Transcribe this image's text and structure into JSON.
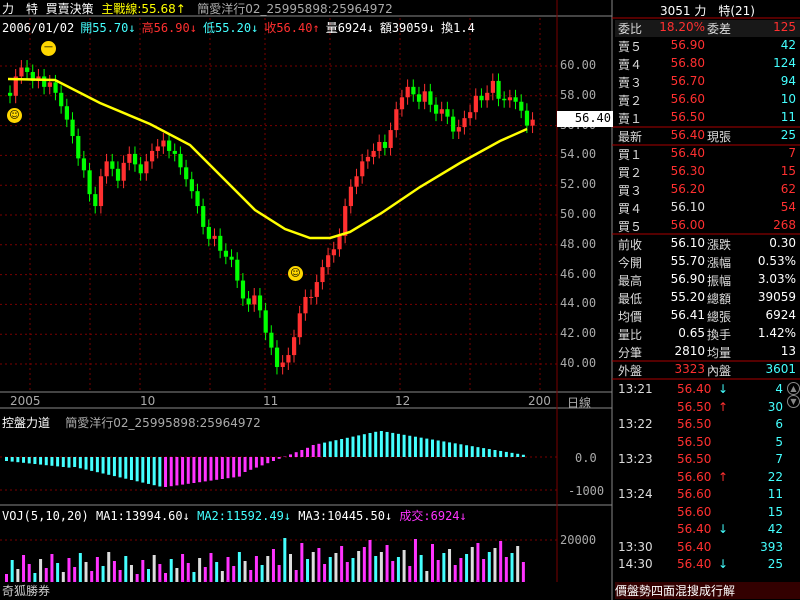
{
  "header": {
    "symbol": "力　特",
    "panel_title": "買賣決策",
    "main_line_label": "主戰線:",
    "main_line_value": "55.68↑",
    "broker_info": "簡愛洋行02_25995898:25964972",
    "date": "2006/01/02",
    "open": "開55.70↓",
    "high": "高56.90↓",
    "low": "低55.20↓",
    "close": "收56.40↑",
    "volume": "量6924↓",
    "amount": "額39059↓",
    "turnover": "換1.4"
  },
  "price_axis": {
    "ticks": [
      "60.00",
      "58.00",
      "56.00",
      "54.00",
      "52.00",
      "50.00",
      "48.00",
      "46.00",
      "44.00",
      "42.00",
      "40.00"
    ],
    "current": "56.40"
  },
  "time_axis": {
    "labels": [
      "2005",
      "10",
      "11",
      "12",
      "200"
    ],
    "unit": "日線"
  },
  "indicator_panel": {
    "title": "控盤力道",
    "broker": "簡愛洋行02_25995898:25964972",
    "ticks": [
      "0.0",
      "-1000"
    ]
  },
  "volume_panel": {
    "title": "VOJ(5,10,20)",
    "ma1": "MA1:13994.60↓",
    "ma2": "MA2:11592.49↓",
    "ma3": "MA3:10445.50↓",
    "deal": "成交:6924↓",
    "tick": "20000",
    "brand": "奇狐勝券"
  },
  "quote": {
    "title": "3051 力　特(21)",
    "weibi_label": "委比",
    "weibi_value": "18.20%",
    "weicha_label": "委差",
    "weicha_value": "125",
    "asks": [
      {
        "label": "賣５",
        "price": "56.90",
        "vol": "42"
      },
      {
        "label": "賣４",
        "price": "56.80",
        "vol": "124"
      },
      {
        "label": "賣３",
        "price": "56.70",
        "vol": "94"
      },
      {
        "label": "賣２",
        "price": "56.60",
        "vol": "10"
      },
      {
        "label": "賣１",
        "price": "56.50",
        "vol": "11"
      }
    ],
    "latest_label": "最新",
    "latest_price": "56.40",
    "now_label": "現張",
    "now_vol": "25",
    "bids": [
      {
        "label": "買１",
        "price": "56.40",
        "vol": "7"
      },
      {
        "label": "買２",
        "price": "56.30",
        "vol": "15"
      },
      {
        "label": "買３",
        "price": "56.20",
        "vol": "62"
      },
      {
        "label": "買４",
        "price": "56.10",
        "vol": "54"
      },
      {
        "label": "買５",
        "price": "56.00",
        "vol": "268"
      }
    ],
    "stats": [
      {
        "l1": "前收",
        "v1": "56.10",
        "l2": "漲跌",
        "v2": "0.30"
      },
      {
        "l1": "今開",
        "v1": "55.70",
        "l2": "漲幅",
        "v2": "0.53%"
      },
      {
        "l1": "最高",
        "v1": "56.90",
        "l2": "振幅",
        "v2": "3.03%"
      },
      {
        "l1": "最低",
        "v1": "55.20",
        "l2": "總額",
        "v2": "39059"
      },
      {
        "l1": "均價",
        "v1": "56.41",
        "l2": "總張",
        "v2": "6924"
      },
      {
        "l1": "量比",
        "v1": "0.65",
        "l2": "換手",
        "v2": "1.42%"
      },
      {
        "l1": "分筆",
        "v1": "2810",
        "l2": "均量",
        "v2": "13"
      }
    ],
    "outer_label": "外盤",
    "outer_value": "3323",
    "inner_label": "內盤",
    "inner_value": "3601"
  },
  "ticks": [
    {
      "time": "13:21",
      "price": "56.40",
      "arrow": "↓",
      "vol": "4"
    },
    {
      "time": "",
      "price": "56.50",
      "arrow": "↑",
      "vol": "30"
    },
    {
      "time": "13:22",
      "price": "56.50",
      "arrow": "",
      "vol": "6"
    },
    {
      "time": "",
      "price": "56.50",
      "arrow": "",
      "vol": "5"
    },
    {
      "time": "13:23",
      "price": "56.50",
      "arrow": "",
      "vol": "7"
    },
    {
      "time": "",
      "price": "56.60",
      "arrow": "↑",
      "vol": "22"
    },
    {
      "time": "13:24",
      "price": "56.60",
      "arrow": "",
      "vol": "11"
    },
    {
      "time": "",
      "price": "56.60",
      "arrow": "",
      "vol": "15"
    },
    {
      "time": "",
      "price": "56.40",
      "arrow": "↓",
      "vol": "42"
    },
    {
      "time": "13:30",
      "price": "56.40",
      "arrow": "",
      "vol": "393"
    },
    {
      "time": "14:30",
      "price": "56.40",
      "arrow": "↓",
      "vol": "25"
    }
  ],
  "status_bar": "價盤勢四面混搜成行解",
  "colors": {
    "up": "#ff3030",
    "down": "#00ff00",
    "ma": "#ffff00",
    "cyan": "#44ffff",
    "magenta": "#ff33ff",
    "grid": "#7a0000"
  }
}
